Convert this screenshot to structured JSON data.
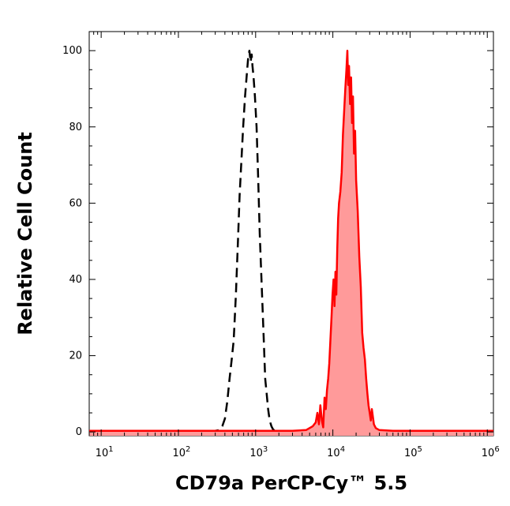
{
  "chart_data": {
    "type": "area",
    "title": "",
    "xlabel": "CD79a PerCP-Cy™ 5.5",
    "ylabel": "Relative Cell Count",
    "x_scale": "log10",
    "xlim": [
      7,
      1200000
    ],
    "ylim": [
      -1,
      105
    ],
    "x_ticks": [
      {
        "base": "10",
        "exp": "1",
        "value": 10
      },
      {
        "base": "10",
        "exp": "2",
        "value": 100
      },
      {
        "base": "10",
        "exp": "3",
        "value": 1000
      },
      {
        "base": "10",
        "exp": "4",
        "value": 10000
      },
      {
        "base": "10",
        "exp": "5",
        "value": 100000
      },
      {
        "base": "10",
        "exp": "6",
        "value": 1000000
      }
    ],
    "y_ticks": [
      {
        "label": "0",
        "value": 0
      },
      {
        "label": "20",
        "value": 20
      },
      {
        "label": "40",
        "value": 40
      },
      {
        "label": "60",
        "value": 60
      },
      {
        "label": "80",
        "value": 80
      },
      {
        "label": "100",
        "value": 100
      }
    ],
    "grid": false,
    "legend": "none",
    "series": [
      {
        "style": "dashed-line",
        "color": "#000000",
        "fill": "none",
        "points": [
          [
            7,
            0.3
          ],
          [
            100,
            0.3
          ],
          [
            300,
            0.3
          ],
          [
            340,
            0.5
          ],
          [
            370,
            1.5
          ],
          [
            400,
            3.5
          ],
          [
            430,
            8
          ],
          [
            460,
            14
          ],
          [
            490,
            19
          ],
          [
            520,
            24
          ],
          [
            555,
            36
          ],
          [
            590,
            50
          ],
          [
            620,
            62
          ],
          [
            650,
            70
          ],
          [
            690,
            80
          ],
          [
            730,
            88
          ],
          [
            770,
            94
          ],
          [
            800,
            98
          ],
          [
            830,
            100
          ],
          [
            860,
            97
          ],
          [
            890,
            99
          ],
          [
            910,
            96
          ],
          [
            940,
            93
          ],
          [
            980,
            88
          ],
          [
            1030,
            80
          ],
          [
            1080,
            66
          ],
          [
            1130,
            52
          ],
          [
            1190,
            40
          ],
          [
            1260,
            27
          ],
          [
            1330,
            14
          ],
          [
            1390,
            10
          ],
          [
            1450,
            6
          ],
          [
            1520,
            3
          ],
          [
            1600,
            1.5
          ],
          [
            1700,
            0.5
          ],
          [
            2000,
            0.3
          ],
          [
            1200000,
            0.3
          ]
        ]
      },
      {
        "style": "filled",
        "color": "#ff0000",
        "fill": "#ff9a9a",
        "points": [
          [
            7,
            0.3
          ],
          [
            3000,
            0.3
          ],
          [
            4500,
            0.5
          ],
          [
            5500,
            1.5
          ],
          [
            6000,
            2.5
          ],
          [
            6300,
            5
          ],
          [
            6600,
            2
          ],
          [
            6900,
            7
          ],
          [
            7200,
            3
          ],
          [
            7500,
            1.2
          ],
          [
            7800,
            9
          ],
          [
            8100,
            6
          ],
          [
            8400,
            11
          ],
          [
            8700,
            14
          ],
          [
            9000,
            18
          ],
          [
            9300,
            24
          ],
          [
            9600,
            30
          ],
          [
            9900,
            36
          ],
          [
            10200,
            40
          ],
          [
            10500,
            33
          ],
          [
            10800,
            42
          ],
          [
            11100,
            36
          ],
          [
            11400,
            48
          ],
          [
            11700,
            56
          ],
          [
            12000,
            60
          ],
          [
            12500,
            63
          ],
          [
            13000,
            68
          ],
          [
            13500,
            78
          ],
          [
            14000,
            84
          ],
          [
            14500,
            90
          ],
          [
            15000,
            95
          ],
          [
            15400,
            100
          ],
          [
            15800,
            91
          ],
          [
            16200,
            96
          ],
          [
            16700,
            86
          ],
          [
            17200,
            93
          ],
          [
            17700,
            81
          ],
          [
            18200,
            88
          ],
          [
            18800,
            73
          ],
          [
            19400,
            79
          ],
          [
            20000,
            66
          ],
          [
            21000,
            58
          ],
          [
            22000,
            46
          ],
          [
            23000,
            38
          ],
          [
            24000,
            26
          ],
          [
            25000,
            22
          ],
          [
            26000,
            19
          ],
          [
            27000,
            14
          ],
          [
            28000,
            10
          ],
          [
            29000,
            7
          ],
          [
            30000,
            5
          ],
          [
            31000,
            3
          ],
          [
            32000,
            6
          ],
          [
            33000,
            4
          ],
          [
            34000,
            2
          ],
          [
            36000,
            1
          ],
          [
            40000,
            0.5
          ],
          [
            60000,
            0.3
          ],
          [
            1200000,
            0.3
          ]
        ]
      }
    ]
  }
}
